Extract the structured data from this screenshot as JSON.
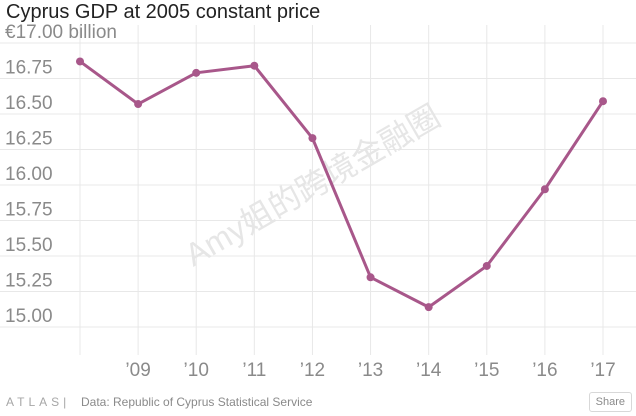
{
  "chart_data": {
    "type": "line",
    "title": "Cyprus GDP at 2005 constant price",
    "ylabel": "€17.00 billion",
    "xlabel": "",
    "x": [
      "2008",
      "2009",
      "2010",
      "2011",
      "2012",
      "2013",
      "2014",
      "2015",
      "2016",
      "2017"
    ],
    "x_tick_labels": [
      "",
      "’09",
      "’10",
      "’11",
      "’12",
      "’13",
      "’14",
      "’15",
      "’16",
      "’17"
    ],
    "y_tick_labels": [
      "€17.00 billion",
      "16.75",
      "16.50",
      "16.25",
      "16.00",
      "15.75",
      "15.50",
      "15.25",
      "15.00"
    ],
    "y_ticks": [
      17.0,
      16.75,
      16.5,
      16.25,
      16.0,
      15.75,
      15.5,
      15.25,
      15.0
    ],
    "ylim": [
      14.92,
      17.0
    ],
    "grid": true,
    "series": [
      {
        "values": [
          16.87,
          16.57,
          16.79,
          16.84,
          16.33,
          15.35,
          15.14,
          15.43,
          15.97,
          16.59
        ]
      }
    ],
    "colors": {
      "line": "#a8578a",
      "grid": "#e8e8e8"
    }
  },
  "watermark": "Amy姐的跨境金融圈",
  "footer": {
    "brand": "ATLAS|",
    "source": "Data:  Republic of Cyprus Statistical Service",
    "share_label": "Share"
  }
}
